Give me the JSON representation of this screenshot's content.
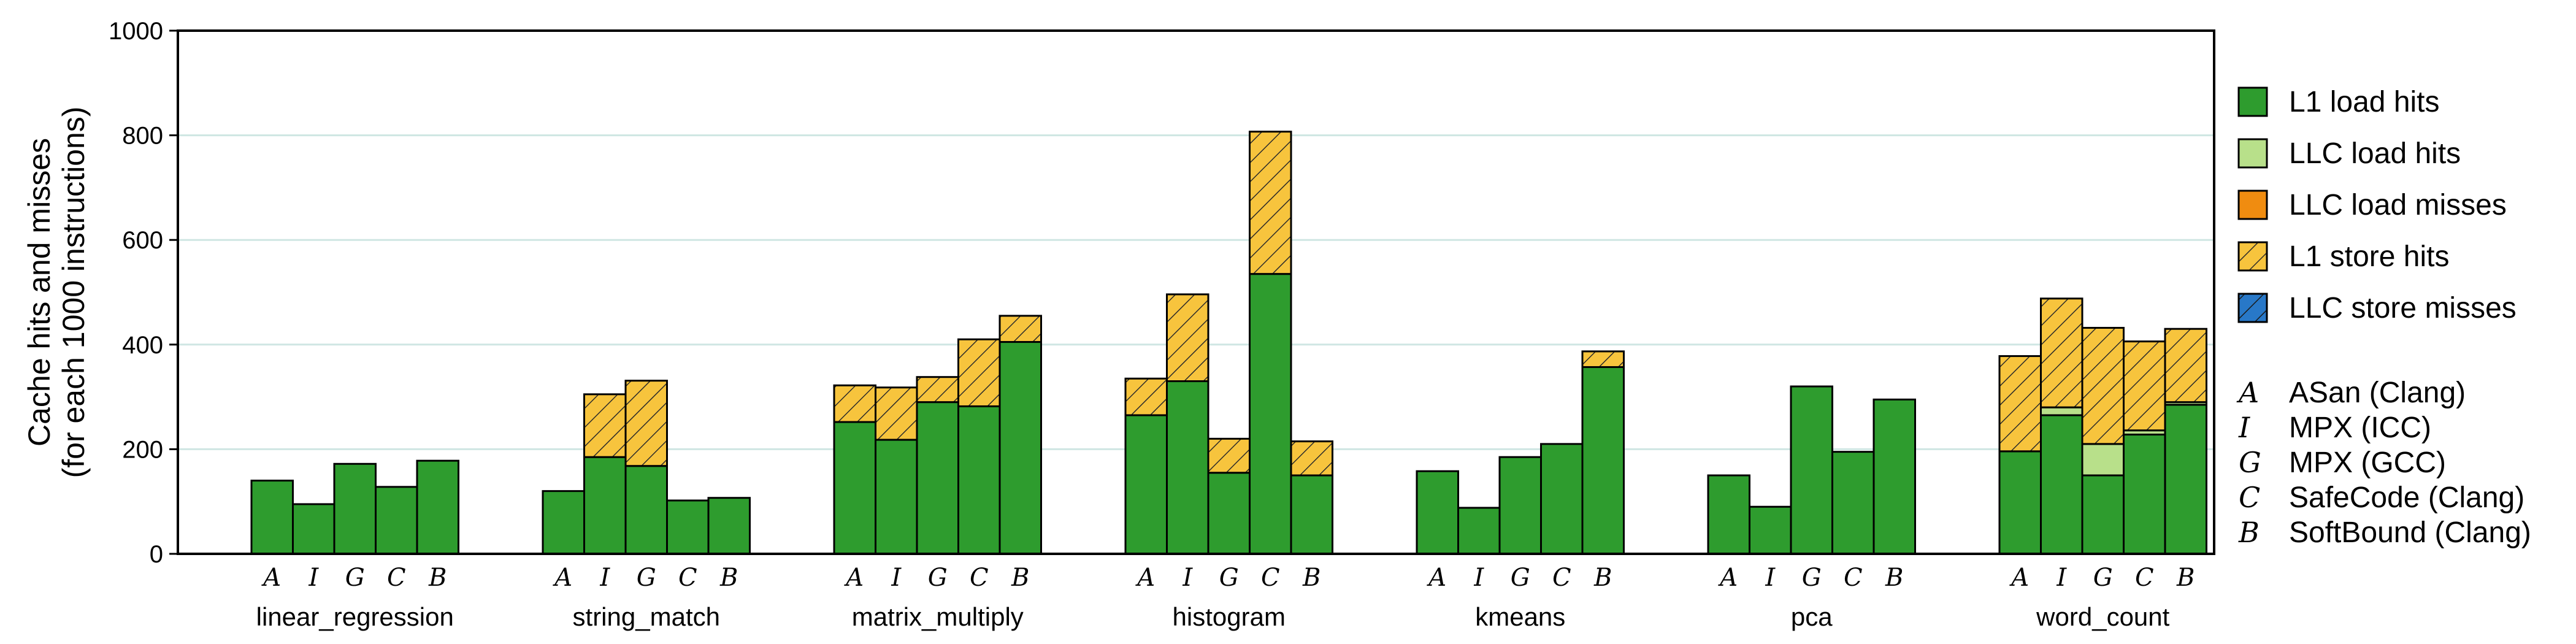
{
  "chart_data": {
    "type": "bar",
    "stacked": true,
    "ylabel": [
      "Cache hits and misses",
      "(for each 1000 instructions)"
    ],
    "ylim": [
      0,
      1000
    ],
    "yticks": [
      0,
      200,
      400,
      600,
      800,
      1000
    ],
    "grid": "horizontal",
    "legend_position": "right",
    "groups": [
      "linear_regression",
      "string_match",
      "matrix_multiply",
      "histogram",
      "kmeans",
      "pca",
      "word_count"
    ],
    "sub_categories": [
      "A",
      "I",
      "G",
      "C",
      "B"
    ],
    "tool_legend": [
      {
        "key": "A",
        "name": "ASan (Clang)"
      },
      {
        "key": "I",
        "name": "MPX (ICC)"
      },
      {
        "key": "G",
        "name": "MPX (GCC)"
      },
      {
        "key": "C",
        "name": "SafeCode (Clang)"
      },
      {
        "key": "B",
        "name": "SoftBound (Clang)"
      }
    ],
    "series": [
      {
        "name": "L1 load hits",
        "color": "#2e9c2e",
        "pattern": "solid",
        "values": [
          [
            140,
            95,
            172,
            128,
            178
          ],
          [
            120,
            185,
            168,
            102,
            107
          ],
          [
            252,
            218,
            290,
            282,
            405
          ],
          [
            265,
            330,
            155,
            535,
            150
          ],
          [
            158,
            88,
            185,
            210,
            357
          ],
          [
            150,
            90,
            320,
            195,
            295
          ],
          [
            196,
            265,
            150,
            228,
            285
          ]
        ]
      },
      {
        "name": "LLC load hits",
        "color": "#b8e08a",
        "pattern": "solid",
        "values": [
          [
            0,
            0,
            0,
            0,
            0
          ],
          [
            0,
            0,
            0,
            0,
            0
          ],
          [
            0,
            0,
            0,
            0,
            0
          ],
          [
            0,
            0,
            0,
            0,
            0
          ],
          [
            0,
            0,
            0,
            0,
            0
          ],
          [
            0,
            0,
            0,
            0,
            0
          ],
          [
            0,
            15,
            60,
            8,
            5
          ]
        ]
      },
      {
        "name": "LLC load misses",
        "color": "#f08c10",
        "pattern": "solid",
        "values": [
          [
            0,
            0,
            0,
            0,
            0
          ],
          [
            0,
            0,
            0,
            0,
            0
          ],
          [
            0,
            0,
            0,
            0,
            0
          ],
          [
            0,
            0,
            0,
            0,
            0
          ],
          [
            0,
            0,
            0,
            0,
            0
          ],
          [
            0,
            0,
            0,
            0,
            0
          ],
          [
            0,
            0,
            0,
            0,
            0
          ]
        ]
      },
      {
        "name": "L1 store hits",
        "color": "#f7c43d",
        "pattern": "hatch",
        "values": [
          [
            0,
            0,
            0,
            0,
            0
          ],
          [
            0,
            120,
            163,
            0,
            0
          ],
          [
            70,
            100,
            48,
            128,
            50
          ],
          [
            70,
            166,
            65,
            272,
            65
          ],
          [
            0,
            0,
            0,
            0,
            30
          ],
          [
            0,
            0,
            0,
            0,
            0
          ],
          [
            182,
            208,
            222,
            170,
            140
          ]
        ]
      },
      {
        "name": "LLC store misses",
        "color": "#2878c8",
        "pattern": "hatch",
        "values": [
          [
            0,
            0,
            0,
            0,
            0
          ],
          [
            0,
            0,
            0,
            0,
            0
          ],
          [
            0,
            0,
            0,
            0,
            0
          ],
          [
            0,
            0,
            0,
            0,
            0
          ],
          [
            0,
            0,
            0,
            0,
            0
          ],
          [
            0,
            0,
            0,
            0,
            0
          ],
          [
            0,
            0,
            0,
            0,
            0
          ]
        ]
      }
    ]
  }
}
